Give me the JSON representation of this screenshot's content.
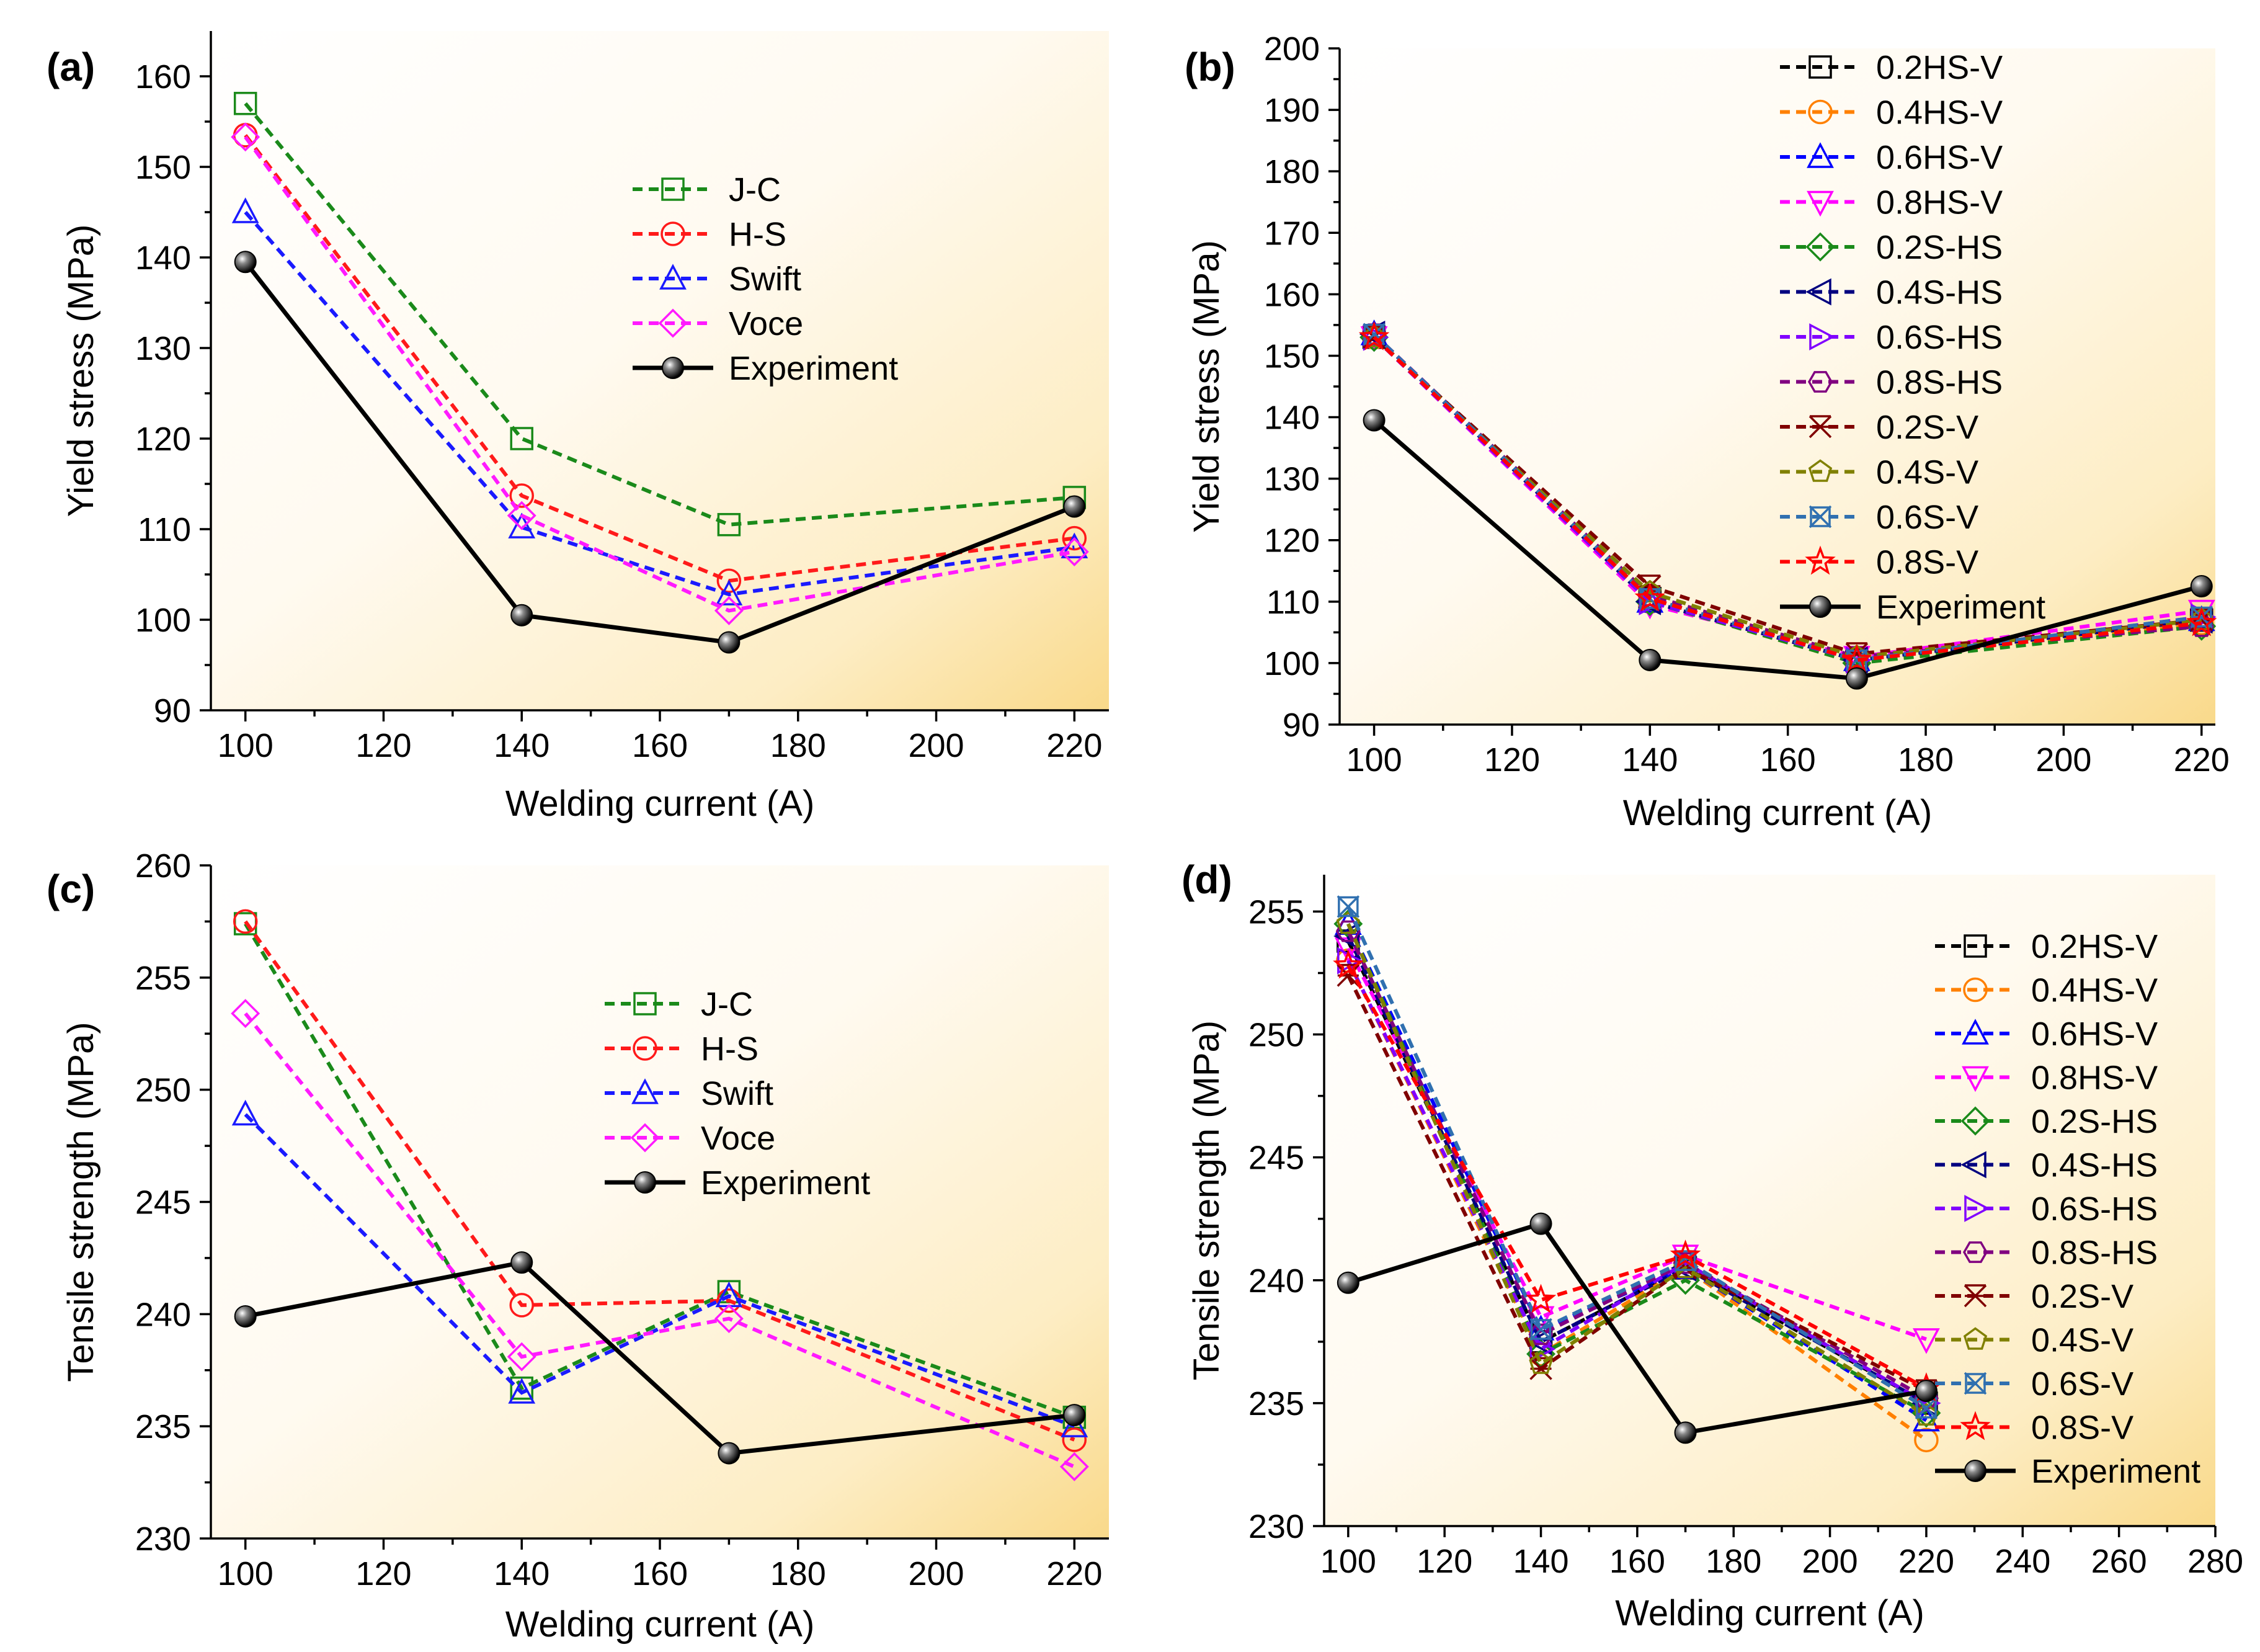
{
  "chart_data": [
    {
      "panel": "(a)",
      "type": "line",
      "xlabel": "Welding current (A)",
      "ylabel": "Yield stress (MPa)",
      "xlim": [
        95,
        225
      ],
      "ylim": [
        90,
        165
      ],
      "xticks": [
        100,
        120,
        140,
        160,
        180,
        200,
        220
      ],
      "yticks": [
        90,
        100,
        110,
        120,
        130,
        140,
        150,
        160
      ],
      "x": [
        100,
        140,
        170,
        220
      ],
      "legend_position": "upper-center",
      "series": [
        {
          "name": "J-C",
          "color": "#1a8a1a",
          "marker": "square",
          "dashed": true,
          "values": [
            157,
            120,
            110.5,
            113.5
          ]
        },
        {
          "name": "H-S",
          "color": "#ff1a1a",
          "marker": "circle",
          "dashed": true,
          "values": [
            153.5,
            113.7,
            104.3,
            109
          ]
        },
        {
          "name": "Swift",
          "color": "#1a1aff",
          "marker": "triangle-up",
          "dashed": true,
          "values": [
            145,
            110.2,
            102.8,
            108
          ]
        },
        {
          "name": "Voce",
          "color": "#ff1aff",
          "marker": "diamond",
          "dashed": true,
          "values": [
            153.3,
            111.5,
            101,
            107.5
          ]
        },
        {
          "name": "Experiment",
          "color": "#000000",
          "marker": "filled-circle",
          "dashed": false,
          "values": [
            139.5,
            100.5,
            97.5,
            112.5
          ]
        }
      ]
    },
    {
      "panel": "(b)",
      "type": "line",
      "xlabel": "Welding current (A)",
      "ylabel": "Yield stress (MPa)",
      "xlim": [
        95,
        222
      ],
      "ylim": [
        90,
        200
      ],
      "xticks": [
        100,
        120,
        140,
        160,
        180,
        200,
        220
      ],
      "yticks": [
        90,
        100,
        110,
        120,
        130,
        140,
        150,
        160,
        170,
        180,
        190,
        200
      ],
      "x": [
        100,
        140,
        170,
        220
      ],
      "legend_position": "upper-right",
      "series": [
        {
          "name": "0.2HS-V",
          "color": "#000000",
          "marker": "square",
          "dashed": true,
          "values": [
            153,
            110.5,
            100.5,
            107
          ]
        },
        {
          "name": "0.4HS-V",
          "color": "#ff8000",
          "marker": "circle",
          "dashed": true,
          "values": [
            153,
            110,
            100,
            106.5
          ]
        },
        {
          "name": "0.6HS-V",
          "color": "#0000ff",
          "marker": "triangle-up",
          "dashed": true,
          "values": [
            153.5,
            110,
            100.5,
            107
          ]
        },
        {
          "name": "0.8HS-V",
          "color": "#ff00ff",
          "marker": "triangle-down",
          "dashed": true,
          "values": [
            153,
            109.5,
            101,
            108.5
          ]
        },
        {
          "name": "0.2S-HS",
          "color": "#1a8a1a",
          "marker": "diamond",
          "dashed": true,
          "values": [
            153,
            110,
            100,
            106
          ]
        },
        {
          "name": "0.4S-HS",
          "color": "#000080",
          "marker": "triangle-left",
          "dashed": true,
          "values": [
            153.5,
            110,
            100.5,
            107
          ]
        },
        {
          "name": "0.6S-HS",
          "color": "#8000ff",
          "marker": "triangle-right",
          "dashed": true,
          "values": [
            153,
            110,
            100.5,
            107.5
          ]
        },
        {
          "name": "0.8S-HS",
          "color": "#800080",
          "marker": "hexagon",
          "dashed": true,
          "values": [
            153.5,
            111,
            101,
            106
          ]
        },
        {
          "name": "0.2S-V",
          "color": "#800000",
          "marker": "asterisk",
          "dashed": true,
          "values": [
            153,
            112.5,
            101.5,
            107
          ]
        },
        {
          "name": "0.4S-V",
          "color": "#808000",
          "marker": "pentagon",
          "dashed": true,
          "values": [
            153,
            111.5,
            101,
            107
          ]
        },
        {
          "name": "0.6S-V",
          "color": "#3070b0",
          "marker": "x-box",
          "dashed": true,
          "values": [
            153.5,
            110.5,
            100.5,
            107.5
          ]
        },
        {
          "name": "0.8S-V",
          "color": "#ff0000",
          "marker": "star",
          "dashed": true,
          "values": [
            153,
            110.5,
            100.5,
            106.5
          ]
        },
        {
          "name": "Experiment",
          "color": "#000000",
          "marker": "filled-circle",
          "dashed": false,
          "values": [
            139.5,
            100.5,
            97.5,
            112.5
          ]
        }
      ]
    },
    {
      "panel": "(c)",
      "type": "line",
      "xlabel": "Welding current (A)",
      "ylabel": "Tensile strength (MPa)",
      "xlim": [
        95,
        225
      ],
      "ylim": [
        230,
        260
      ],
      "xticks": [
        100,
        120,
        140,
        160,
        180,
        200,
        220
      ],
      "yticks": [
        230,
        235,
        240,
        245,
        250,
        255,
        260
      ],
      "x": [
        100,
        140,
        170,
        220
      ],
      "legend_position": "upper-center",
      "series": [
        {
          "name": "J-C",
          "color": "#1a8a1a",
          "marker": "square",
          "dashed": true,
          "values": [
            257.4,
            236.7,
            241,
            235.4
          ]
        },
        {
          "name": "H-S",
          "color": "#ff1a1a",
          "marker": "circle",
          "dashed": true,
          "values": [
            257.5,
            240.4,
            240.6,
            234.4
          ]
        },
        {
          "name": "Swift",
          "color": "#1a1aff",
          "marker": "triangle-up",
          "dashed": true,
          "values": [
            248.9,
            236.5,
            240.8,
            235
          ]
        },
        {
          "name": "Voce",
          "color": "#ff1aff",
          "marker": "diamond",
          "dashed": true,
          "values": [
            253.4,
            238.1,
            239.8,
            233.2
          ]
        },
        {
          "name": "Experiment",
          "color": "#000000",
          "marker": "filled-circle",
          "dashed": false,
          "values": [
            239.9,
            242.3,
            233.8,
            235.5
          ]
        }
      ]
    },
    {
      "panel": "(d)",
      "type": "line",
      "xlabel": "Welding current (A)",
      "ylabel": "Tensile strength (MPa)",
      "xlim": [
        95,
        280
      ],
      "ylim": [
        230,
        256.5
      ],
      "xticks": [
        100,
        120,
        140,
        160,
        180,
        200,
        220,
        240,
        260,
        280
      ],
      "yticks": [
        230,
        235,
        240,
        245,
        250,
        255
      ],
      "x": [
        100,
        140,
        170,
        220
      ],
      "legend_position": "right",
      "series": [
        {
          "name": "0.2HS-V",
          "color": "#000000",
          "marker": "square",
          "dashed": true,
          "values": [
            253.8,
            237.5,
            240.5,
            235
          ]
        },
        {
          "name": "0.4HS-V",
          "color": "#ff8000",
          "marker": "circle",
          "dashed": true,
          "values": [
            253,
            237,
            240.5,
            233.5
          ]
        },
        {
          "name": "0.6HS-V",
          "color": "#0000ff",
          "marker": "triangle-up",
          "dashed": true,
          "values": [
            254.5,
            238,
            240.5,
            234.3
          ]
        },
        {
          "name": "0.8HS-V",
          "color": "#ff00ff",
          "marker": "triangle-down",
          "dashed": true,
          "values": [
            253.5,
            238.5,
            241,
            237.6
          ]
        },
        {
          "name": "0.2S-HS",
          "color": "#1a8a1a",
          "marker": "diamond",
          "dashed": true,
          "values": [
            254.5,
            237,
            240,
            234.6
          ]
        },
        {
          "name": "0.4S-HS",
          "color": "#000080",
          "marker": "triangle-left",
          "dashed": true,
          "values": [
            254,
            237.5,
            240.5,
            235
          ]
        },
        {
          "name": "0.6S-HS",
          "color": "#8000ff",
          "marker": "triangle-right",
          "dashed": true,
          "values": [
            253,
            237.2,
            240.7,
            235
          ]
        },
        {
          "name": "0.8S-HS",
          "color": "#800080",
          "marker": "hexagon",
          "dashed": true,
          "values": [
            254.2,
            237.8,
            240.7,
            235.2
          ]
        },
        {
          "name": "0.2S-V",
          "color": "#800000",
          "marker": "asterisk",
          "dashed": true,
          "values": [
            252.4,
            236.4,
            240.5,
            235.5
          ]
        },
        {
          "name": "0.4S-V",
          "color": "#808000",
          "marker": "pentagon",
          "dashed": true,
          "values": [
            254.5,
            236.6,
            240.5,
            234.5
          ]
        },
        {
          "name": "0.6S-V",
          "color": "#3070b0",
          "marker": "x-box",
          "dashed": true,
          "values": [
            255.2,
            238,
            240.8,
            234.8
          ]
        },
        {
          "name": "0.8S-V",
          "color": "#ff0000",
          "marker": "star",
          "dashed": true,
          "values": [
            252.8,
            239.2,
            241,
            235.6
          ]
        },
        {
          "name": "Experiment",
          "color": "#000000",
          "marker": "filled-circle",
          "dashed": false,
          "values": [
            239.9,
            242.3,
            233.8,
            235.5
          ]
        }
      ]
    }
  ]
}
